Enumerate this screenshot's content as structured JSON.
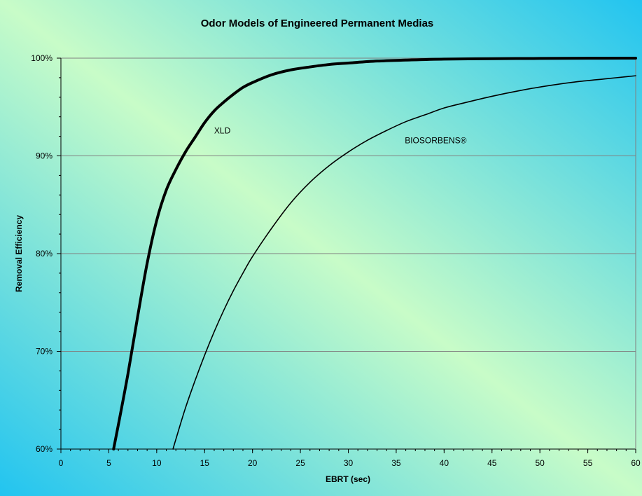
{
  "chart_data": {
    "type": "line",
    "title": "Odor Models of Engineered Permanent Medias",
    "xlabel": "EBRT (sec)",
    "ylabel": "Removal Efficiency",
    "xlim": [
      0,
      60
    ],
    "ylim": [
      60,
      100
    ],
    "x_ticks": [
      "0",
      "5",
      "10",
      "15",
      "20",
      "25",
      "30",
      "35",
      "40",
      "45",
      "50",
      "55",
      "60"
    ],
    "y_ticks": [
      "60%",
      "70%",
      "80%",
      "90%",
      "100%"
    ],
    "grid": "horizontal",
    "background": {
      "colors": [
        "#22c4f0",
        "#c8fcc8"
      ]
    },
    "series": [
      {
        "name": "XLD",
        "color": "#000000",
        "emphasis": "bold",
        "x": [
          5.5,
          6,
          7,
          8,
          9,
          10,
          11,
          12,
          13,
          14,
          15,
          16,
          17,
          18,
          19,
          20,
          22,
          24,
          26,
          28,
          30,
          33,
          36,
          40,
          45,
          50,
          55,
          60
        ],
        "y": [
          60.0,
          62.5,
          67.7,
          73.5,
          79.0,
          83.4,
          86.5,
          88.6,
          90.4,
          91.9,
          93.4,
          94.6,
          95.5,
          96.3,
          97.0,
          97.5,
          98.3,
          98.8,
          99.1,
          99.35,
          99.5,
          99.7,
          99.8,
          99.9,
          99.95,
          99.97,
          99.99,
          100.0
        ]
      },
      {
        "name": "BIOSORBENS®",
        "color": "#000000",
        "emphasis": "normal",
        "x": [
          11.7,
          12,
          13,
          14,
          15,
          16,
          17,
          18,
          19,
          20,
          22,
          24,
          26,
          28,
          30,
          32,
          34,
          36,
          38,
          40,
          42,
          45,
          48,
          51,
          54,
          57,
          60
        ],
        "y": [
          60.0,
          61.0,
          64.2,
          67.0,
          69.6,
          72.0,
          74.2,
          76.2,
          78.0,
          79.7,
          82.6,
          85.2,
          87.3,
          89.0,
          90.4,
          91.6,
          92.6,
          93.5,
          94.2,
          94.9,
          95.4,
          96.1,
          96.7,
          97.2,
          97.6,
          97.9,
          98.2
        ]
      }
    ]
  }
}
